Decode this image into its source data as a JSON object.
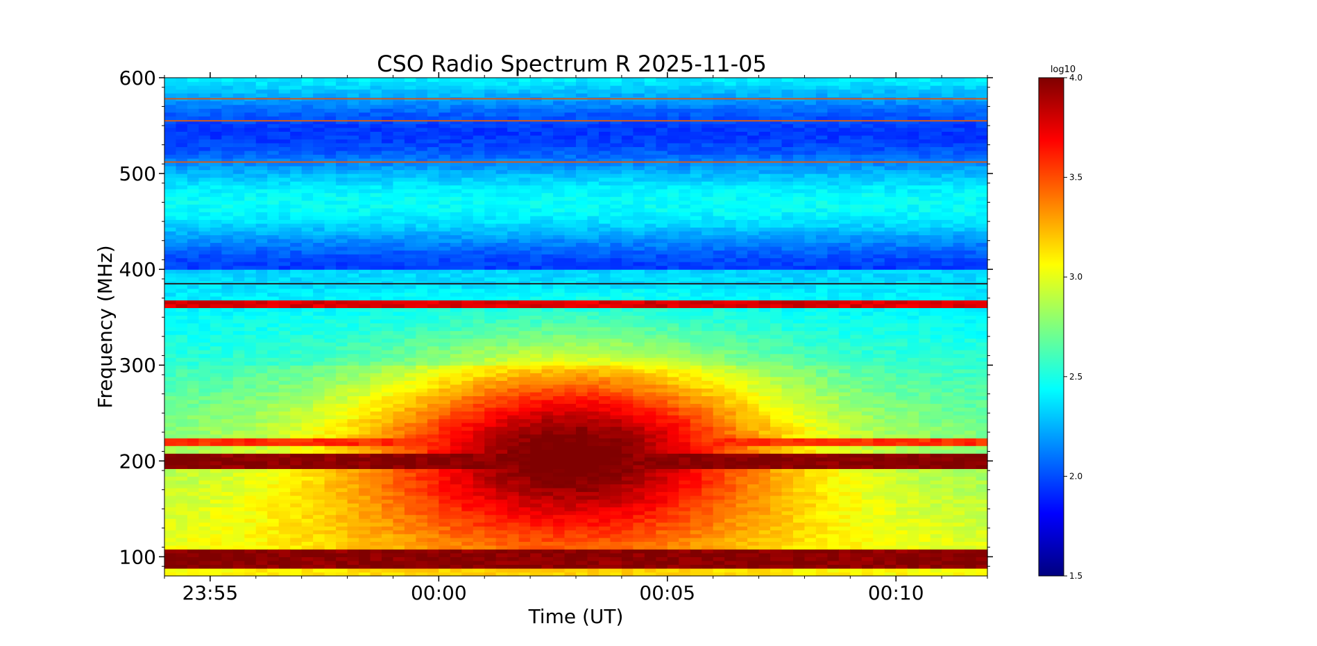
{
  "chart_data": {
    "type": "heatmap",
    "title": "CSO Radio Spectrum R 2025-11-05",
    "xlabel": "Time (UT)",
    "ylabel": "Frequency (MHz)",
    "x_ticks": [
      "23:55",
      "00:00",
      "00:05",
      "00:10"
    ],
    "y_ticks": [
      100,
      200,
      300,
      400,
      500,
      600
    ],
    "ylim": [
      80,
      600
    ],
    "x_range": [
      "23:54",
      "00:12"
    ],
    "colorbar": {
      "label": "log10",
      "ticks": [
        "4.0",
        "3.5",
        "3.0",
        "2.5",
        "2.0",
        "1.5"
      ],
      "range": [
        1.5,
        4.0
      ],
      "colormap": "jet"
    },
    "features": {
      "persistent_bands_mhz": [
        {
          "from": 88,
          "to": 108,
          "level": 4.0
        },
        {
          "from": 193,
          "to": 207,
          "level": 4.0
        },
        {
          "from": 215,
          "to": 222,
          "level": 3.6
        },
        {
          "from": 362,
          "to": 366,
          "level": 3.8
        }
      ],
      "burst_peak_time": "00:03",
      "burst_peak_level": 3.7,
      "burst_freq_range_mhz": [
        110,
        320
      ]
    }
  },
  "colors": {
    "jet_stops": [
      "#00007f",
      "#0000ff",
      "#007fff",
      "#00ffff",
      "#7fff7f",
      "#ffff00",
      "#ff7f00",
      "#ff0000",
      "#7f0000"
    ]
  }
}
